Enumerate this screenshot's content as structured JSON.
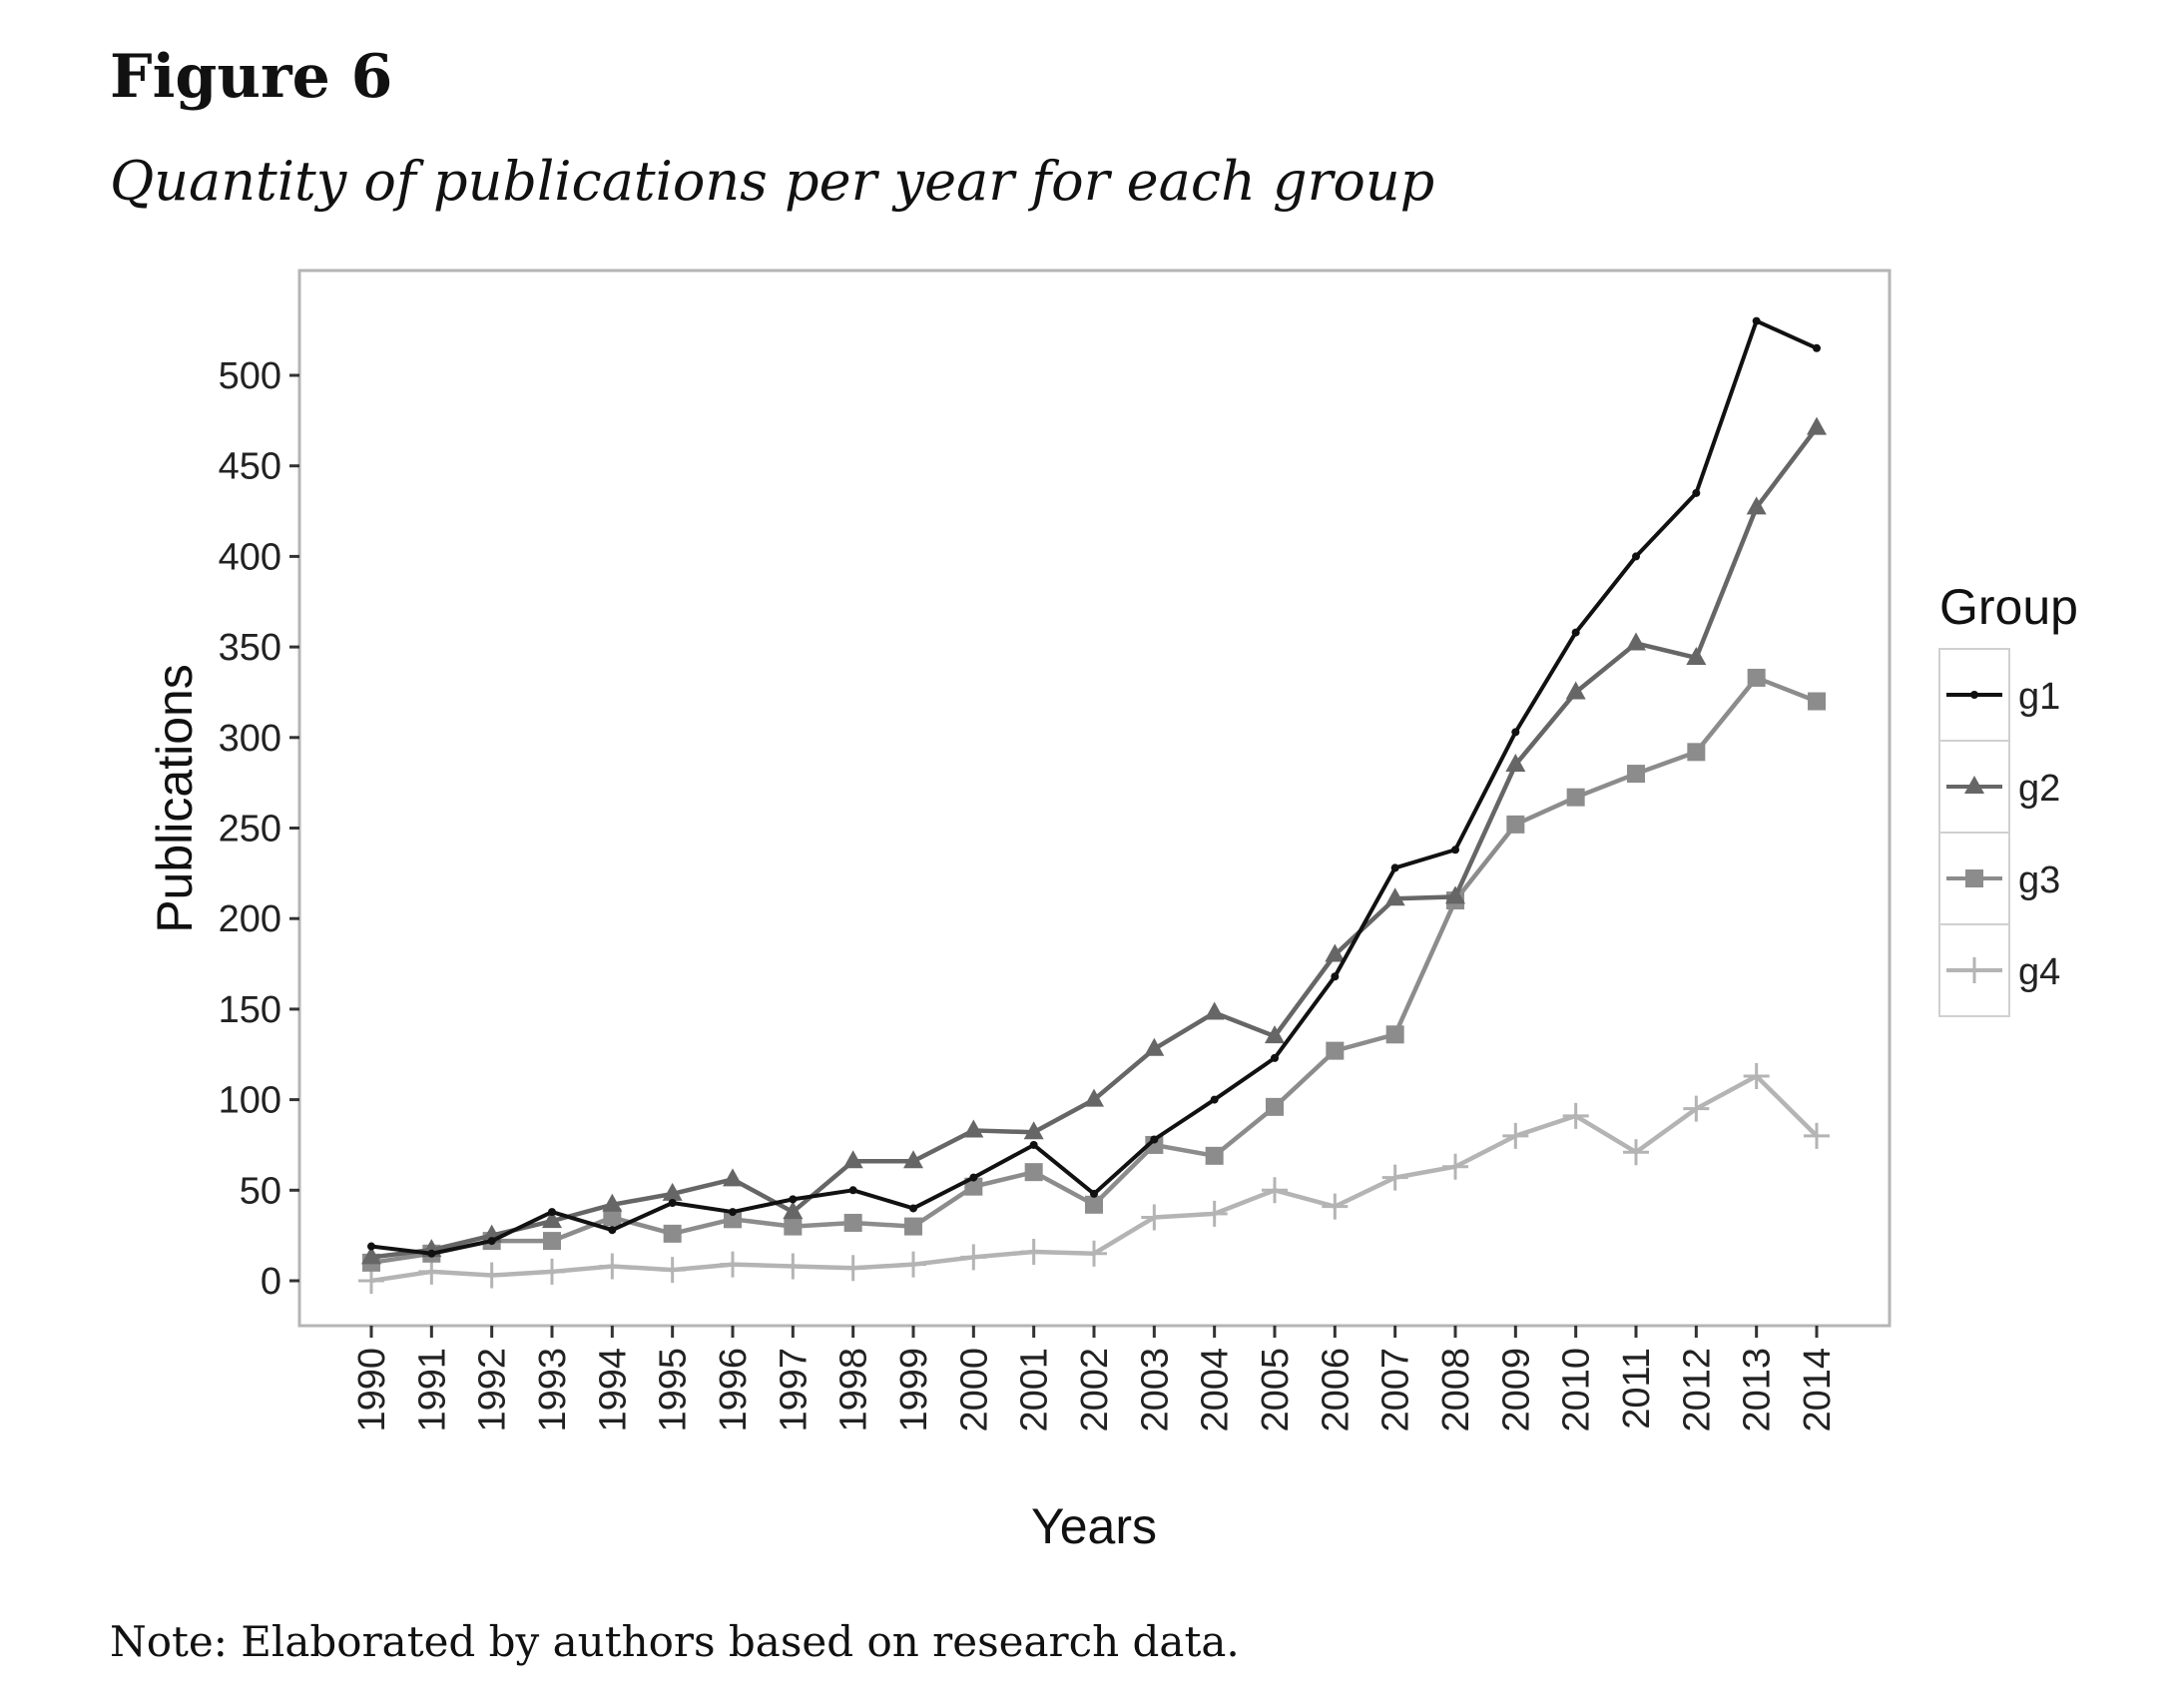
{
  "figure": {
    "label": "Figure 6",
    "caption": "Quantity of publications per year for each group",
    "note": "Note: Elaborated by authors based on research data."
  },
  "chart_data": {
    "type": "line",
    "xlabel": "Years",
    "ylabel": "Publications",
    "x": [
      1990,
      1991,
      1992,
      1993,
      1994,
      1995,
      1996,
      1997,
      1998,
      1999,
      2000,
      2001,
      2002,
      2003,
      2004,
      2005,
      2006,
      2007,
      2008,
      2009,
      2010,
      2011,
      2012,
      2013,
      2014
    ],
    "ylim": [
      -25,
      535
    ],
    "yticks": [
      0,
      50,
      100,
      150,
      200,
      250,
      300,
      350,
      400,
      450,
      500
    ],
    "grid": false,
    "legend": {
      "title": "Group",
      "position": "right"
    },
    "series": [
      {
        "name": "g1",
        "color": "#111111",
        "marker": "dot",
        "values": [
          19,
          15,
          22,
          38,
          28,
          43,
          38,
          45,
          50,
          40,
          57,
          75,
          48,
          78,
          100,
          123,
          168,
          228,
          238,
          303,
          358,
          400,
          435,
          530,
          515
        ]
      },
      {
        "name": "g2",
        "color": "#666666",
        "marker": "triangle",
        "values": [
          13,
          17,
          25,
          33,
          42,
          48,
          56,
          38,
          66,
          66,
          83,
          82,
          100,
          128,
          148,
          135,
          180,
          211,
          212,
          285,
          325,
          352,
          344,
          427,
          471
        ]
      },
      {
        "name": "g3",
        "color": "#8c8c8c",
        "marker": "square",
        "values": [
          10,
          15,
          22,
          22,
          35,
          26,
          34,
          30,
          32,
          30,
          52,
          60,
          42,
          75,
          69,
          96,
          127,
          136,
          210,
          252,
          267,
          280,
          292,
          333,
          320
        ]
      },
      {
        "name": "g4",
        "color": "#b4b4b4",
        "marker": "plus",
        "values": [
          0,
          5,
          3,
          5,
          8,
          6,
          9,
          8,
          7,
          9,
          13,
          16,
          15,
          35,
          37,
          50,
          41,
          57,
          63,
          80,
          91,
          71,
          95,
          113,
          80
        ]
      }
    ]
  }
}
